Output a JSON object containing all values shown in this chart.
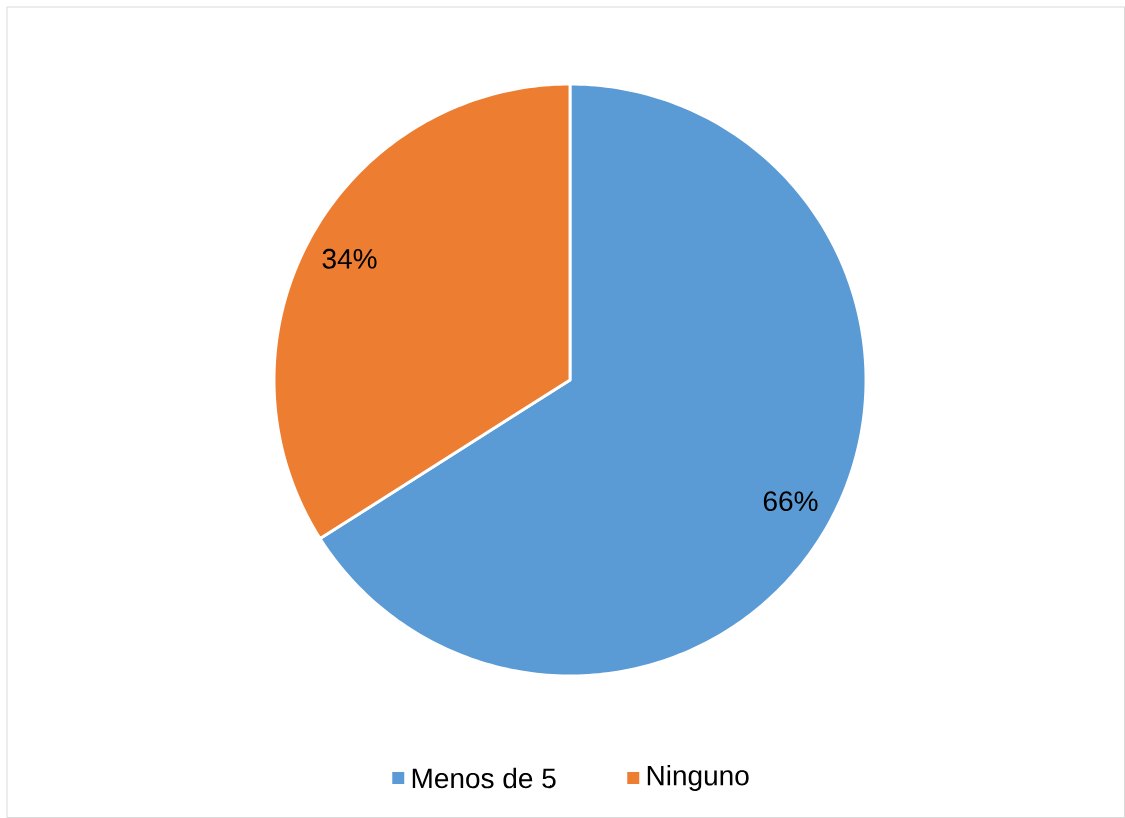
{
  "chart_data": {
    "type": "pie",
    "categories": [
      "Menos de 5",
      "Ninguno"
    ],
    "values": [
      66,
      34
    ],
    "colors": [
      "#5b9bd5",
      "#ed7d31"
    ],
    "value_labels": [
      "66%",
      "34%"
    ],
    "legend": "bottom"
  }
}
